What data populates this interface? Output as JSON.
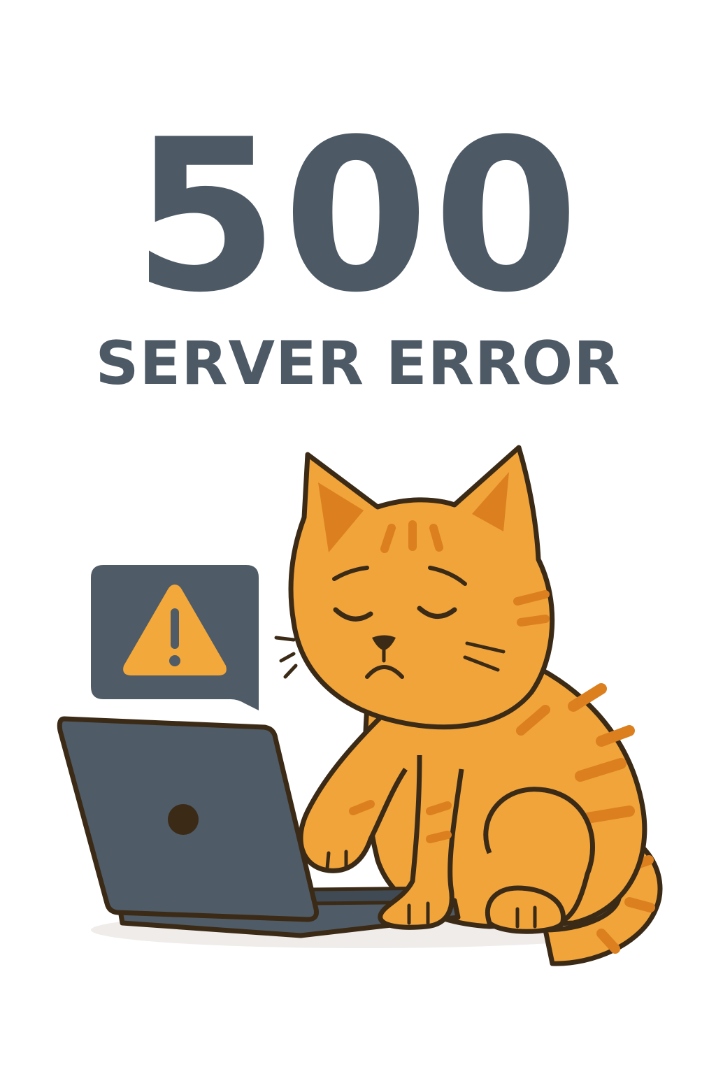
{
  "error": {
    "code": "500",
    "message": "SERVER ERROR"
  },
  "colors": {
    "text": "#4d5a66",
    "cat_fur": "#f0a43a",
    "cat_stripes": "#db7f1f",
    "outline": "#3b2a16",
    "laptop": "#4f5b66",
    "warning": "#f3a83b"
  },
  "illustration": {
    "subject": "sad-cat-at-laptop",
    "bubble_icon": "warning-icon"
  }
}
